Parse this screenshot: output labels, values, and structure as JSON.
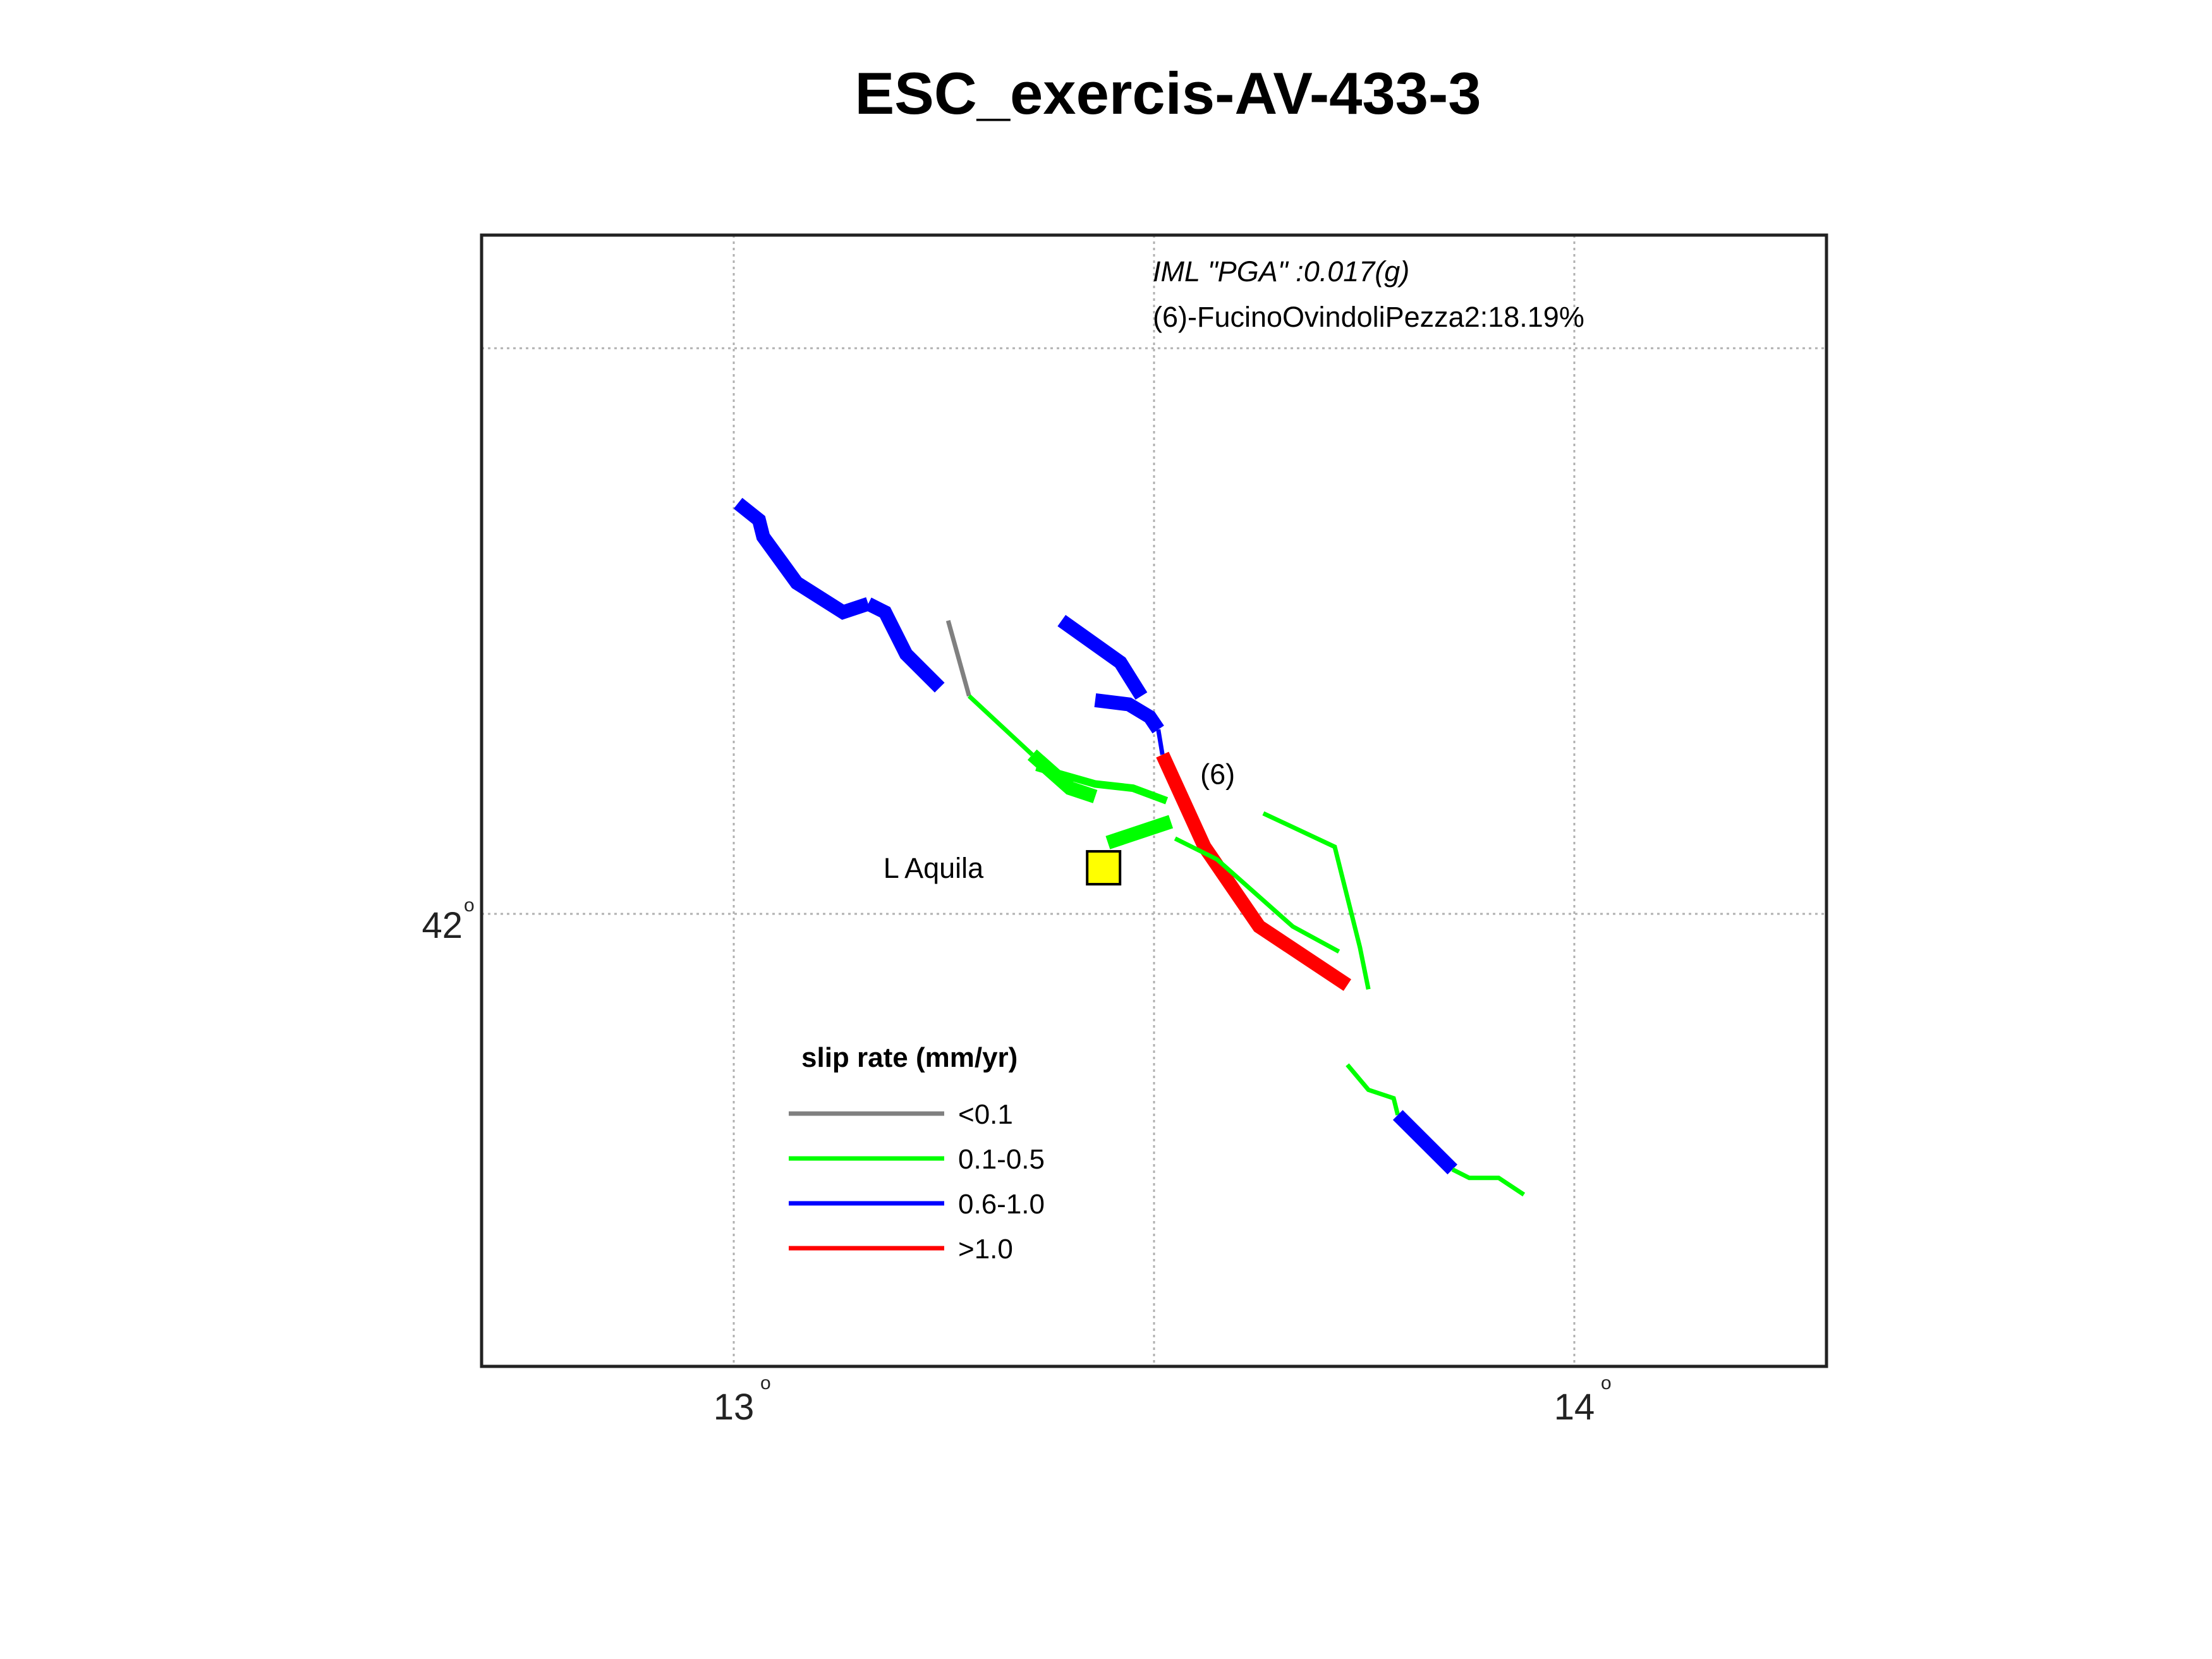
{
  "title": "ESC_exercis-AV-433-3",
  "map": {
    "x_ticks": [
      {
        "value": 13,
        "label": "13"
      },
      {
        "value": 14,
        "label": "14"
      }
    ],
    "y_ticks": [
      {
        "value": 42,
        "label": "42"
      }
    ],
    "extra_grid_lat": 42.675,
    "degree_symbol": "o",
    "lon_range": [
      12.7,
      14.3
    ],
    "lat_range": [
      41.46,
      42.81
    ]
  },
  "annotations": {
    "iml": "IML \"PGA\" :0.017(g)",
    "source": "(6)-FucinoOvindoliPezza2:18.19%"
  },
  "site": {
    "name": "L Aquila",
    "lon": 13.44,
    "lat": 42.055,
    "color": "#ffff00"
  },
  "fault_label": {
    "text": "(6)",
    "lon": 13.555,
    "lat": 42.155
  },
  "legend": {
    "title": "slip rate (mm/yr)",
    "items": [
      {
        "label": "<0.1",
        "color": "#808080"
      },
      {
        "label": "0.1-0.5",
        "color": "#00ff00"
      },
      {
        "label": "0.6-1.0",
        "color": "#0000ff"
      },
      {
        "label": ">1.0",
        "color": "#ff0000"
      }
    ]
  },
  "faults": [
    {
      "class": "0.6-1.0",
      "color": "#0000ff",
      "weight": "thick",
      "points": [
        [
          13.005,
          42.49
        ],
        [
          13.03,
          42.47
        ],
        [
          13.035,
          42.45
        ],
        [
          13.075,
          42.395
        ],
        [
          13.13,
          42.36
        ],
        [
          13.16,
          42.37
        ]
      ]
    },
    {
      "class": "0.6-1.0",
      "color": "#0000ff",
      "weight": "thick",
      "points": [
        [
          13.16,
          42.37
        ],
        [
          13.18,
          42.36
        ],
        [
          13.205,
          42.31
        ],
        [
          13.245,
          42.27
        ]
      ]
    },
    {
      "class": "<0.1",
      "color": "#808080",
      "weight": "thin",
      "points": [
        [
          13.255,
          42.35
        ],
        [
          13.28,
          42.26
        ]
      ]
    },
    {
      "class": "0.1-0.5",
      "color": "#00ff00",
      "weight": "thin",
      "points": [
        [
          13.28,
          42.26
        ],
        [
          13.355,
          42.19
        ]
      ]
    },
    {
      "class": "0.1-0.5",
      "color": "#00ff00",
      "weight": "thick",
      "points": [
        [
          13.355,
          42.19
        ],
        [
          13.4,
          42.15
        ],
        [
          13.43,
          42.14
        ]
      ]
    },
    {
      "class": "0.1-0.5",
      "color": "#00ff00",
      "weight": "medium",
      "points": [
        [
          13.36,
          42.175
        ],
        [
          13.43,
          42.155
        ],
        [
          13.475,
          42.15
        ],
        [
          13.515,
          42.135
        ]
      ]
    },
    {
      "class": "0.1-0.5",
      "color": "#00ff00",
      "weight": "thick",
      "points": [
        [
          13.445,
          42.085
        ],
        [
          13.52,
          42.11
        ]
      ]
    },
    {
      "class": "0.6-1.0",
      "color": "#0000ff",
      "weight": "thick",
      "points": [
        [
          13.39,
          42.35
        ],
        [
          13.46,
          42.3
        ],
        [
          13.485,
          42.26
        ]
      ]
    },
    {
      "class": "0.6-1.0",
      "color": "#0000ff",
      "weight": "thick",
      "points": [
        [
          13.43,
          42.255
        ],
        [
          13.47,
          42.25
        ],
        [
          13.495,
          42.235
        ],
        [
          13.505,
          42.22
        ]
      ]
    },
    {
      "class": "0.6-1.0",
      "color": "#0000ff",
      "weight": "thin",
      "points": [
        [
          13.505,
          42.22
        ],
        [
          13.51,
          42.19
        ]
      ]
    },
    {
      "class": ">1.0",
      "color": "#ff0000",
      "weight": "thick",
      "points": [
        [
          13.51,
          42.19
        ],
        [
          13.56,
          42.08
        ],
        [
          13.625,
          41.985
        ],
        [
          13.73,
          41.915
        ]
      ]
    },
    {
      "class": "0.1-0.5",
      "color": "#00ff00",
      "weight": "thin",
      "points": [
        [
          13.525,
          42.09
        ],
        [
          13.575,
          42.065
        ],
        [
          13.665,
          41.985
        ],
        [
          13.72,
          41.955
        ]
      ]
    },
    {
      "class": "0.1-0.5",
      "color": "#00ff00",
      "weight": "thin",
      "points": [
        [
          13.63,
          42.12
        ],
        [
          13.715,
          42.08
        ],
        [
          13.745,
          41.96
        ],
        [
          13.755,
          41.91
        ]
      ]
    },
    {
      "class": "0.1-0.5",
      "color": "#00ff00",
      "weight": "thin",
      "points": [
        [
          13.73,
          41.82
        ],
        [
          13.755,
          41.79
        ],
        [
          13.785,
          41.78
        ],
        [
          13.79,
          41.76
        ]
      ]
    },
    {
      "class": "0.6-1.0",
      "color": "#0000ff",
      "weight": "thick",
      "points": [
        [
          13.79,
          41.76
        ],
        [
          13.855,
          41.695
        ]
      ]
    },
    {
      "class": "0.1-0.5",
      "color": "#00ff00",
      "weight": "thin",
      "points": [
        [
          13.855,
          41.695
        ],
        [
          13.875,
          41.685
        ],
        [
          13.91,
          41.685
        ],
        [
          13.94,
          41.665
        ]
      ]
    }
  ]
}
